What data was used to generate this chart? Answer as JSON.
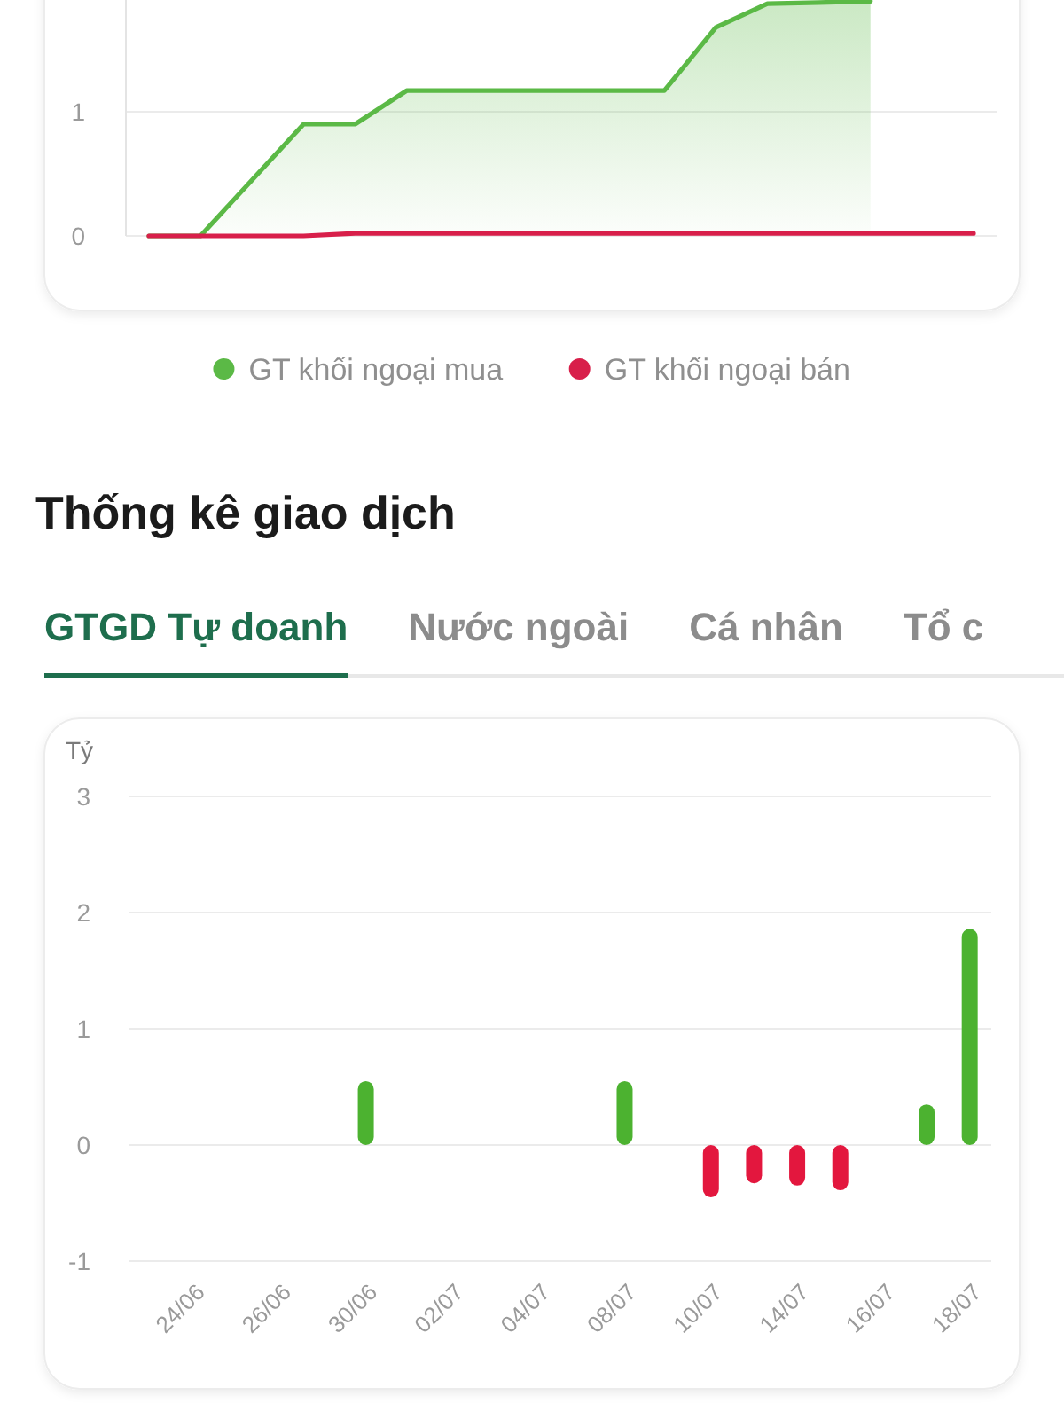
{
  "chart_data": [
    {
      "type": "area",
      "categories": [
        null,
        null,
        null,
        null,
        null,
        null,
        null,
        null,
        null,
        null,
        null,
        null,
        null,
        null,
        null,
        null,
        null
      ],
      "series": [
        {
          "name": "GT khối ngoại mua",
          "color": "#5bb946",
          "values": [
            0,
            0,
            0.45,
            0.9,
            0.9,
            1.17,
            1.17,
            1.17,
            1.17,
            1.17,
            1.17,
            1.68,
            1.87,
            1.88,
            1.89,
            null,
            null
          ]
        },
        {
          "name": "GT khối ngoại bán",
          "type": "line",
          "color": "#d81f4a",
          "values": [
            0,
            0,
            0,
            0,
            0.02,
            0.02,
            0.02,
            0.02,
            0.02,
            0.02,
            0.02,
            0.02,
            0.02,
            0.02,
            0.02,
            0.02,
            0.02
          ]
        }
      ],
      "ylim": [
        0,
        1.9
      ],
      "yticks": [
        0,
        1
      ],
      "grid": "y",
      "legend": "bottom",
      "tick_labels": "y"
    },
    {
      "type": "bar",
      "title": "Thống kê giao dịch",
      "subtitle": "GTGD Tự doanh",
      "annotations": [
        "Nước ngoài",
        "Cá nhân",
        "Tổ c"
      ],
      "ylabel": "Tỷ",
      "categories": [
        null,
        "24/06",
        null,
        "26/06",
        null,
        "30/06",
        null,
        "02/07",
        null,
        "04/07",
        null,
        "08/07",
        null,
        "10/07",
        null,
        "14/07",
        null,
        "16/07",
        null,
        "18/07"
      ],
      "values": [
        null,
        null,
        null,
        null,
        null,
        0.55,
        null,
        null,
        null,
        null,
        null,
        0.55,
        null,
        -0.45,
        -0.33,
        -0.35,
        -0.39,
        null,
        0.35,
        1.86
      ],
      "colors": [
        null,
        null,
        null,
        null,
        null,
        "#4cb230",
        null,
        null,
        null,
        null,
        null,
        "#4cb230",
        null,
        "#e3173e",
        "#e3173e",
        "#e3173e",
        "#e3173e",
        null,
        "#4cb230",
        "#4cb230"
      ],
      "ylim": [
        -1,
        3
      ],
      "yticks": [
        -1,
        0,
        1,
        2,
        3
      ],
      "grid": "y"
    }
  ]
}
